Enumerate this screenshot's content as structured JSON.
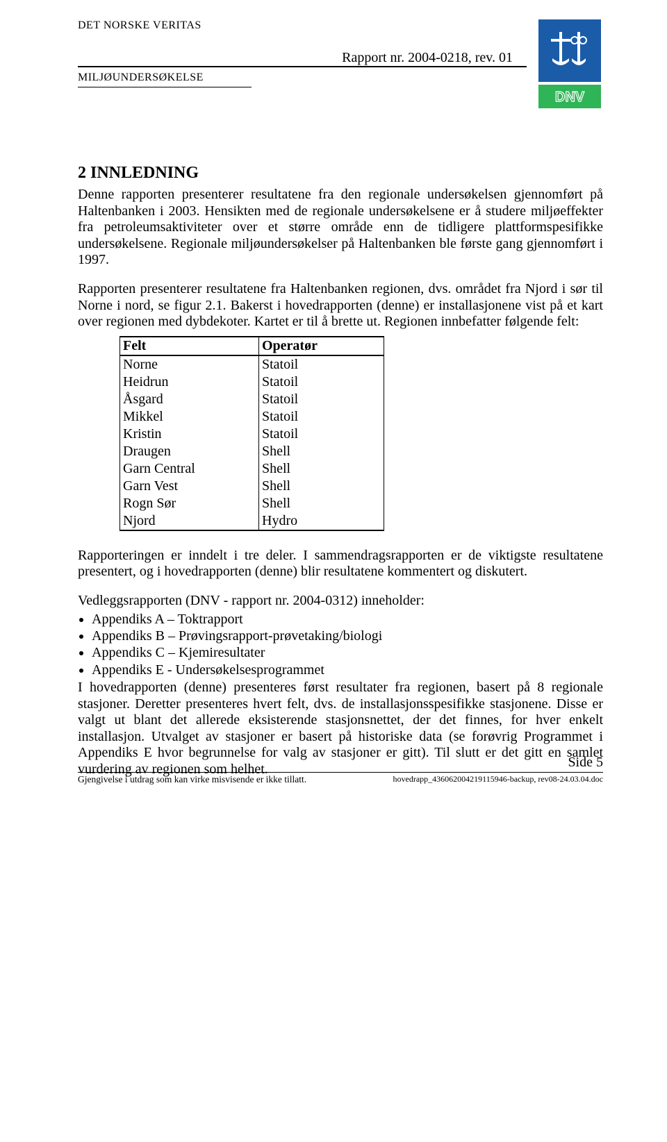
{
  "header": {
    "org_name": "DET NORSKE VERITAS",
    "report_line": "Rapport nr. 2004-0218, rev. 01",
    "subtitle": "MILJØUNDERSØKELSE",
    "logo_text": "DNV",
    "logo_blue": "#1a5ca8",
    "logo_green": "#2fb457"
  },
  "section": {
    "heading": "2  INNLEDNING",
    "para1": "Denne rapporten presenterer resultatene fra den regionale undersøkelsen gjennomført på Haltenbanken i 2003. Hensikten med de regionale undersøkelsene er å studere miljøeffekter fra petroleumsaktiviteter over et større område enn de tidligere plattformspesifikke undersøkelsene. Regionale miljøundersøkelser på Haltenbanken ble første gang gjennomført i 1997.",
    "para2": "Rapporten presenterer resultatene fra Haltenbanken regionen, dvs. området fra Njord i sør til Norne i nord, se figur 2.1. Bakerst i hovedrapporten (denne) er installasjonene vist på et kart over regionen med dybdekoter. Kartet er til å brette ut. Regionen innbefatter følgende felt:",
    "para3": "Rapporteringen er inndelt i tre deler. I sammendragsrapporten er de viktigste resultatene presentert, og i hovedrapporten (denne) blir resultatene kommentert og diskutert.",
    "para4_intro": "Vedleggsrapporten (DNV - rapport nr. 2004-0312) inneholder:",
    "para5": "I hovedrapporten (denne) presenteres først resultater fra regionen, basert på 8 regionale stasjoner. Deretter presenteres hvert felt, dvs. de installasjonsspesifikke stasjonene. Disse er valgt ut blant det allerede eksisterende stasjonsnettet, der det finnes, for hver enkelt installasjon. Utvalget av stasjoner er basert på historiske data (se forøvrig Programmet i Appendiks E hvor begrunnelse for valg av stasjoner er gitt). Til slutt er det gitt en samlet vurdering av regionen som helhet."
  },
  "table": {
    "columns": [
      "Felt",
      "Operatør"
    ],
    "col_widths": [
      "200px",
      "180px"
    ],
    "rows": [
      [
        "Norne",
        "Statoil"
      ],
      [
        "Heidrun",
        "Statoil"
      ],
      [
        "Åsgard",
        "Statoil"
      ],
      [
        "Mikkel",
        "Statoil"
      ],
      [
        "Kristin",
        "Statoil"
      ],
      [
        "Draugen",
        "Shell"
      ],
      [
        "Garn Central",
        "Shell"
      ],
      [
        "Garn Vest",
        "Shell"
      ],
      [
        "Rogn Sør",
        "Shell"
      ],
      [
        "Njord",
        "Hydro"
      ]
    ]
  },
  "appendix_list": [
    "Appendiks A – Toktrapport",
    "Appendiks B – Prøvingsrapport-prøvetaking/biologi",
    "Appendiks C – Kjemiresultater",
    "Appendiks E - Undersøkelsesprogrammet"
  ],
  "footer": {
    "left": "Gjengivelse i utdrag som kan virke misvisende er ikke tillatt.",
    "page": "Side 5",
    "doc": "hovedrapp_436062004219115946-backup, rev08-24.03.04.doc"
  }
}
